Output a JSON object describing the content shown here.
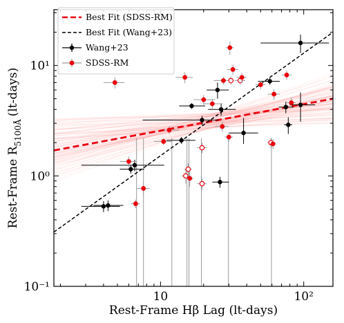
{
  "chart_data": {
    "type": "scatter",
    "x_scale": "log",
    "y_scale": "log",
    "xlim": [
      1.8,
      160
    ],
    "ylim": [
      0.1,
      32
    ],
    "grid": false,
    "legend_placement": "top-left",
    "xlabel": "Rest-Frame Hβ Lag (lt-days)",
    "ylabel_main": "Rest-Frame R",
    "ylabel_sub": "5100Å",
    "ylabel_tail": "(lt-days)",
    "x_tick_labels": [
      {
        "value": 10,
        "text": "10"
      },
      {
        "value": 100,
        "text": "10²"
      }
    ],
    "y_tick_labels": [
      {
        "value": 0.1,
        "text": "10⁻¹"
      },
      {
        "value": 1,
        "text": "10⁰"
      },
      {
        "value": 10,
        "text": "10¹"
      }
    ],
    "colors": {
      "sdss": "#e8000b",
      "wang": "#000000",
      "fit_band": "#ff8080",
      "errbar_light": "#9a9a9a"
    },
    "fits": [
      {
        "name": "Best Fit (SDSS-RM)",
        "style": "red-dashed",
        "points": [
          [
            1.8,
            1.7
          ],
          [
            160,
            5.0
          ]
        ]
      },
      {
        "name": "Best Fit (Wang+23)",
        "style": "black-dashed",
        "points": [
          [
            1.8,
            0.31
          ],
          [
            160,
            20.0
          ]
        ]
      }
    ],
    "series": [
      {
        "name": "Wang+23",
        "color": "#000000",
        "points": [
          {
            "x": 4.0,
            "y": 0.53,
            "xerr": [
              1.2,
              1.2
            ],
            "yerr": [
              0.06,
              0.06
            ]
          },
          {
            "x": 4.3,
            "y": 0.54,
            "xerr": [
              0.9,
              1.2
            ],
            "yerr": [
              0.06,
              0.06
            ]
          },
          {
            "x": 6.2,
            "y": 1.15,
            "xerr": [
              1.0,
              1.5
            ],
            "yerr": [
              0.1,
              0.1
            ]
          },
          {
            "x": 6.6,
            "y": 1.25,
            "xerr": [
              3.8,
              4.0
            ],
            "yerr": [
              0.15,
              0.15
            ]
          },
          {
            "x": 14.0,
            "y": 2.1,
            "xerr": [
              3.0,
              3.5
            ],
            "yerr": [
              0.15,
              0.15
            ]
          },
          {
            "x": 16.5,
            "y": 4.3,
            "xerr": [
              3.0,
              4.0
            ],
            "yerr": [
              0.25,
              0.25
            ]
          },
          {
            "x": 19.5,
            "y": 3.2,
            "xerr": [
              12.0,
              6.0
            ],
            "yerr": [
              0.3,
              0.3
            ]
          },
          {
            "x": 25.0,
            "y": 6.0,
            "xerr": [
              4.0,
              5.0
            ],
            "yerr": [
              1.0,
              1.0
            ]
          },
          {
            "x": 26.5,
            "y": 4.0,
            "xerr": [
              5.0,
              7.0
            ],
            "yerr": [
              0.5,
              0.5
            ]
          },
          {
            "x": 26.0,
            "y": 0.88,
            "xerr": [
              3.0,
              4.0
            ],
            "yerr": [
              0.1,
              0.1
            ]
          },
          {
            "x": 38.0,
            "y": 2.45,
            "xerr": [
              8.0,
              10.0
            ],
            "yerr": [
              0.5,
              0.9
            ]
          },
          {
            "x": 58.0,
            "y": 7.2,
            "xerr": [
              10.0,
              10.0
            ],
            "yerr": [
              0.5,
              0.5
            ]
          },
          {
            "x": 75.0,
            "y": 4.2,
            "xerr": [
              8.0,
              10.0
            ],
            "yerr": [
              0.5,
              0.5
            ]
          },
          {
            "x": 78.0,
            "y": 2.9,
            "xerr": [
              5.0,
              5.0
            ],
            "yerr": [
              0.5,
              0.5
            ]
          },
          {
            "x": 95.0,
            "y": 16.0,
            "xerr": [
              45.0,
              55.0
            ],
            "yerr": [
              3.0,
              3.0
            ]
          },
          {
            "x": 95.0,
            "y": 4.4,
            "xerr": [
              15.0,
              25.0
            ],
            "yerr": [
              1.3,
              1.3
            ]
          }
        ]
      },
      {
        "name": "SDSS-RM",
        "color": "#e8000b",
        "points": [
          {
            "x": 4.8,
            "y": 7.0,
            "xerr": [
              0.8,
              0.8
            ],
            "yerr": [
              0.8,
              0.8
            ],
            "filled": true
          },
          {
            "x": 6.0,
            "y": 1.35,
            "xerr": [
              0.8,
              0.8
            ],
            "yerr": [
              0.15,
              0.15
            ],
            "filled": true
          },
          {
            "x": 6.7,
            "y": 0.56,
            "xerr": [
              0.5,
              0.5
            ],
            "yerr": [
              0.05,
              0.05
            ],
            "filled": true
          },
          {
            "x": 7.6,
            "y": 0.77,
            "xerr": [
              0.8,
              0.8
            ],
            "yerr": [
              0.1,
              0.1
            ],
            "filled": true
          },
          {
            "x": 10.5,
            "y": 2.05,
            "xerr": [
              1.5,
              1.5
            ],
            "yerr": [
              0.15,
              0.15
            ],
            "filled": true
          },
          {
            "x": 11.5,
            "y": 2.6,
            "xerr": [
              1.0,
              2.0
            ],
            "yerr": [
              0.2,
              0.2
            ],
            "filled": true
          },
          {
            "x": 14.8,
            "y": 7.8,
            "xerr": [
              2.0,
              2.0
            ],
            "yerr": [
              0.9,
              0.9
            ],
            "filled": true
          },
          {
            "x": 15.0,
            "y": 1.0,
            "xerr": [
              1.0,
              1.0
            ],
            "yerr": [
              0.15,
              0.15
            ],
            "filled": false
          },
          {
            "x": 15.6,
            "y": 1.15,
            "xerr": [
              1.0,
              1.0
            ],
            "yerr": [
              0.15,
              0.15
            ],
            "filled": false
          },
          {
            "x": 16.0,
            "y": 0.95,
            "xerr": [
              1.0,
              1.0
            ],
            "yerr": [
              0.15,
              0.15
            ],
            "filled": true
          },
          {
            "x": 19.5,
            "y": 1.8,
            "xerr": [
              1.5,
              1.5
            ],
            "yerr": [
              0.2,
              0.2
            ],
            "filled": false
          },
          {
            "x": 19.5,
            "y": 0.85,
            "xerr": [
              1.5,
              1.5
            ],
            "yerr": [
              0.1,
              0.1
            ],
            "filled": false
          },
          {
            "x": 20.0,
            "y": 4.9,
            "xerr": [
              3.0,
              4.0
            ],
            "yerr": [
              0.5,
              0.5
            ],
            "filled": true
          },
          {
            "x": 23.0,
            "y": 4.5,
            "xerr": [
              3.0,
              4.0
            ],
            "yerr": [
              0.5,
              0.5
            ],
            "filled": true
          },
          {
            "x": 27.0,
            "y": 2.8,
            "xerr": [
              3.0,
              3.0
            ],
            "yerr": [
              0.3,
              0.3
            ],
            "filled": true
          },
          {
            "x": 27.5,
            "y": 7.3,
            "xerr": [
              4.0,
              4.0
            ],
            "yerr": [
              0.6,
              0.6
            ],
            "filled": true
          },
          {
            "x": 30.0,
            "y": 2.25,
            "xerr": [
              2.0,
              2.0
            ],
            "yerr": [
              0.2,
              0.2
            ],
            "filled": true
          },
          {
            "x": 30.5,
            "y": 14.5,
            "xerr": [
              2.0,
              2.0
            ],
            "yerr": [
              2.0,
              2.0
            ],
            "filled": true
          },
          {
            "x": 31.0,
            "y": 7.3,
            "xerr": [
              1.5,
              1.5
            ],
            "yerr": [
              0.6,
              0.6
            ],
            "filled": false
          },
          {
            "x": 32.0,
            "y": 9.2,
            "xerr": [
              3.0,
              3.0
            ],
            "yerr": [
              1.0,
              1.0
            ],
            "filled": true
          },
          {
            "x": 36.0,
            "y": 7.3,
            "xerr": [
              3.0,
              3.0
            ],
            "yerr": [
              0.6,
              0.6
            ],
            "filled": false
          },
          {
            "x": 37.0,
            "y": 7.8,
            "xerr": [
              3.0,
              3.0
            ],
            "yerr": [
              0.8,
              0.8
            ],
            "filled": true
          },
          {
            "x": 50.0,
            "y": 6.7,
            "xerr": [
              4.0,
              4.0
            ],
            "yerr": [
              0.6,
              0.6
            ],
            "filled": true
          },
          {
            "x": 59.0,
            "y": 2.0,
            "xerr": [
              3.0,
              3.0
            ],
            "yerr": [
              0.2,
              0.2
            ],
            "filled": false
          },
          {
            "x": 61.0,
            "y": 1.95,
            "xerr": [
              3.0,
              3.0
            ],
            "yerr": [
              0.2,
              0.2
            ],
            "filled": true
          },
          {
            "x": 62.0,
            "y": 5.5,
            "xerr": [
              6.0,
              6.0
            ],
            "yerr": [
              0.6,
              0.6
            ],
            "filled": true
          },
          {
            "x": 76.0,
            "y": 8.2,
            "xerr": [
              6.0,
              6.0
            ],
            "yerr": [
              0.8,
              0.8
            ],
            "filled": true
          },
          {
            "x": 82.0,
            "y": 4.6,
            "xerr": [
              6.0,
              6.0
            ],
            "yerr": [
              0.5,
              0.5
            ],
            "filled": true
          }
        ]
      }
    ],
    "legend": [
      {
        "label": "Best Fit (SDSS-RM)",
        "kind": "red-dashed"
      },
      {
        "label": "Best Fit (Wang+23)",
        "kind": "black-dashed"
      },
      {
        "label": "Wang+23",
        "kind": "black-errbar"
      },
      {
        "label": "SDSS-RM",
        "kind": "red-errbar"
      }
    ]
  }
}
